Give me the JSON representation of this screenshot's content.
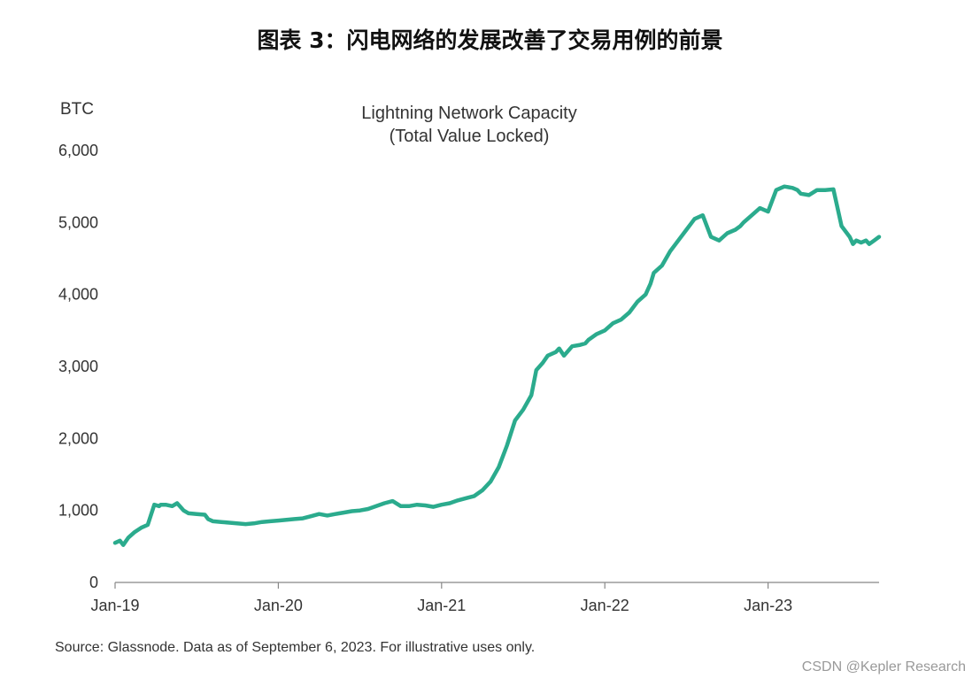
{
  "page_title": "图表 3：闪电网络的发展改善了交易用例的前景",
  "source_note": "Source: Glassnode. Data as of September 6, 2023. For illustrative uses only.",
  "watermark": "CSDN @Kepler Research",
  "colors": {
    "line": "#2bab8d",
    "axis": "#888888",
    "text": "#333333"
  },
  "chart_data": {
    "type": "line",
    "title": "Lightning Network Capacity",
    "subtitle": "(Total Value Locked)",
    "ylabel": "BTC",
    "xlabel": "",
    "x_unit": "years since Jan 2019",
    "ylim": [
      0,
      6000
    ],
    "yticks": [
      0,
      1000,
      2000,
      3000,
      4000,
      5000,
      6000
    ],
    "ytick_labels": [
      "0",
      "1,000",
      "2,000",
      "3,000",
      "4,000",
      "5,000",
      "6,000"
    ],
    "xlim": [
      0,
      4.68
    ],
    "xticks": [
      0,
      1,
      2,
      3,
      4
    ],
    "xtick_labels": [
      "Jan-19",
      "Jan-20",
      "Jan-21",
      "Jan-22",
      "Jan-23"
    ],
    "grid": false,
    "legend": "none",
    "series": [
      {
        "x": [
          0.0,
          0.03,
          0.05,
          0.08,
          0.12,
          0.16,
          0.2,
          0.24,
          0.27,
          0.28,
          0.31,
          0.35,
          0.38,
          0.4,
          0.42,
          0.45,
          0.5,
          0.55,
          0.57,
          0.6,
          0.65,
          0.7,
          0.8,
          0.85,
          0.9,
          0.95,
          1.0,
          1.05,
          1.1,
          1.15,
          1.2,
          1.25,
          1.3,
          1.35,
          1.4,
          1.45,
          1.5,
          1.55,
          1.6,
          1.65,
          1.7,
          1.75,
          1.8,
          1.85,
          1.9,
          1.95,
          2.0,
          2.05,
          2.1,
          2.15,
          2.2,
          2.25,
          2.3,
          2.35,
          2.4,
          2.45,
          2.5,
          2.55,
          2.58,
          2.62,
          2.65,
          2.7,
          2.72,
          2.75,
          2.8,
          2.85,
          2.88,
          2.9,
          2.95,
          3.0,
          3.05,
          3.1,
          3.15,
          3.2,
          3.25,
          3.28,
          3.3,
          3.35,
          3.4,
          3.45,
          3.5,
          3.55,
          3.6,
          3.65,
          3.7,
          3.75,
          3.8,
          3.83,
          3.85,
          3.9,
          3.95,
          4.0,
          4.05,
          4.1,
          4.15,
          4.18,
          4.2,
          4.25,
          4.3,
          4.35,
          4.4,
          4.45,
          4.5,
          4.52,
          4.54,
          4.57,
          4.6,
          4.62,
          4.65,
          4.68
        ],
        "y": [
          550,
          580,
          520,
          620,
          700,
          760,
          800,
          1080,
          1060,
          1080,
          1080,
          1060,
          1100,
          1050,
          1000,
          960,
          950,
          940,
          880,
          850,
          840,
          830,
          810,
          820,
          840,
          850,
          860,
          870,
          880,
          890,
          920,
          950,
          930,
          950,
          970,
          990,
          1000,
          1020,
          1060,
          1100,
          1130,
          1060,
          1060,
          1080,
          1070,
          1050,
          1080,
          1100,
          1140,
          1170,
          1200,
          1280,
          1400,
          1600,
          1900,
          2250,
          2400,
          2600,
          2950,
          3050,
          3150,
          3200,
          3250,
          3150,
          3280,
          3300,
          3320,
          3370,
          3450,
          3500,
          3600,
          3650,
          3750,
          3900,
          4000,
          4150,
          4300,
          4400,
          4600,
          4750,
          4900,
          5050,
          5100,
          4800,
          4750,
          4850,
          4900,
          4950,
          5000,
          5100,
          5200,
          5150,
          5450,
          5500,
          5480,
          5450,
          5400,
          5380,
          5450,
          5450,
          5460,
          4950,
          4800,
          4700,
          4750,
          4720,
          4750,
          4700,
          4750,
          4800
        ]
      }
    ]
  }
}
